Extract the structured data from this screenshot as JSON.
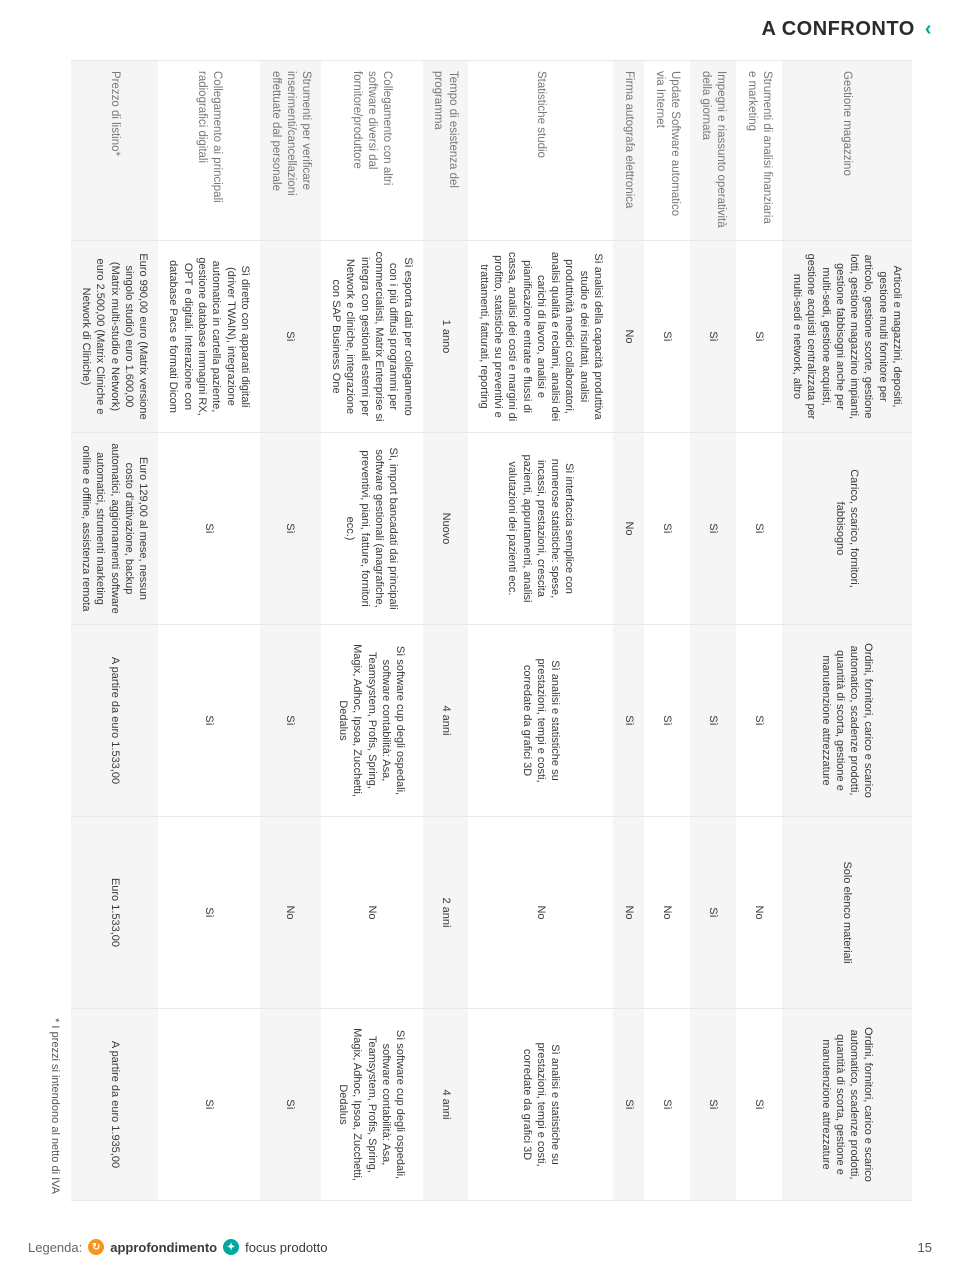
{
  "header": {
    "title": "A CONFRONTO",
    "chevron": "‹"
  },
  "legend": {
    "label": "Legenda:",
    "approfondimento": "approfondimento",
    "focus_prodotto": "focus prodotto",
    "appr_icon_color": "#f7941d",
    "focus_icon_color": "#00a99d"
  },
  "page_number": "15",
  "footnote": "* I prezzi si intendono al netto di IVA",
  "table": {
    "row_band_a_bg": "#f5f5f5",
    "row_band_b_bg": "#ffffff",
    "border_color": "#e8e8e8",
    "rowhead_color": "#777777",
    "rows": [
      {
        "label": "Gestione magazzino",
        "band": "a",
        "cells": [
          "Articoli e magazzini, depositi, gestione multi fornitore per articolo, gestione scorte, gestione lotti, gestione magazzino impianti, gestione fabbisogni anche per multi-sedi, gestione acquisti, gestione acquisti centralizzata per multi-sedi e network, altro",
          "Carico, scarico, fornitori, fabbisogno",
          "Ordini, fornitori, carico e scarico automatico, scadenze prodotti, quantità di scorta, gestione e manutenzione attrezzature",
          "Solo elenco materiali",
          "Ordini, fornitori, carico e scarico automatico, scadenze prodotti, quantità di scorta, gestione e manutenzione attrezzature"
        ]
      },
      {
        "label": "Strumenti di analisi finanziaria e marketing",
        "band": "b",
        "cells": [
          "Sì",
          "Sì",
          "Sì",
          "No",
          "Sì"
        ]
      },
      {
        "label": "Impegni e riassunto operatività della giornata",
        "band": "a",
        "cells": [
          "Sì",
          "Sì",
          "Sì",
          "Sì",
          "Sì"
        ]
      },
      {
        "label": "Update Software automatico via Internet",
        "band": "b",
        "cells": [
          "Sì",
          "Sì",
          "Sì",
          "No",
          "Sì"
        ]
      },
      {
        "label": "Firma autografa elettronica",
        "band": "a",
        "cells": [
          "No",
          "No",
          "Sì",
          "No",
          "Sì"
        ]
      },
      {
        "label": "Statistiche studio",
        "band": "b",
        "cells": [
          "Sì analisi della capacità produttiva studio e dei risultati, analisi produttività medici collaboratori, analisi qualità e reclami, analisi dei carichi di lavoro, analisi e pianificazione entrate e flussi di cassa, analisi dei costi e margini di profitto, statistiche su preventivi e trattamenti, fatturati, reporting",
          "Sì interfaccia semplice con numerose statistiche: spese, incassi, prestazioni, crescita pazienti, appuntamenti, analisi valutazioni dei pazienti ecc.",
          "Sì analisi e statistiche su prestazioni, tempi e costi, corredate da grafici 3D",
          "No",
          "Sì analisi e statistiche su prestazioni, tempi e costi, corredate da grafici 3D"
        ]
      },
      {
        "label": "Tempo di esistenza del programma",
        "band": "a",
        "cells": [
          "1 anno",
          "Nuovo",
          "4 anni",
          "2 anni",
          "4 anni"
        ]
      },
      {
        "label": "Collegamento con altri software diversi dal fornitore/produttore",
        "band": "b",
        "cells": [
          "Sì esporta dati per collegamento con i più diffusi programmi per commercialisti, Matrix Enterprise si integra con gestionali esterni per Network e cliniche, integrazione con SAP Business One",
          "Sì, import bancadati dai principali software gestionali (anagrafiche, preventivi, piani, fatture, fornitori ecc.)",
          "Sì software cup degli ospedali, software contabilità: Asa, Teamsystem, Profis, Spring, Magix, Adhoc, Ipsoa, Zucchetti, Dedalus",
          "No",
          "Sì software cup degli ospedali, software contabilità: Asa, Teamsystem, Profis, Spring, Magix, Adhoc, Ipsoa, Zucchetti, Dedalus"
        ]
      },
      {
        "label": "Strumenti per verificare inserimenti/cancellazioni effettuate dal personale",
        "band": "a",
        "cells": [
          "Sì",
          "Sì",
          "Sì",
          "No",
          "Sì"
        ]
      },
      {
        "label": "Collegamento ai principali radiografici digitali",
        "band": "b",
        "cells": [
          "Sì diretto con apparati digitali (driver TWAIN), integrazione automatica in cartella paziente, gestione database immagini RX, OPT e digitali. Interazione con database Pacs e formati Dicom",
          "Sì",
          "Sì",
          "Sì",
          "Sì"
        ]
      },
      {
        "label": "Prezzo di listino*",
        "band": "a",
        "cells": [
          "Euro 990,00 euro (Matrix versione singolo studio) euro 1.600,00 (Matrix multi-studio e Network) euro 2.500,00 (Matrix Cliniche e Network di Cliniche)",
          "Euro 129,00 al mese, nessun costo d'attivazione, backup automatici, aggiornamenti software automatici, strumenti marketing online e offline, assistenza remota",
          "A partire da euro 1.533,00",
          "Euro 1.533,00",
          "A partire da euro 1.935,00"
        ]
      }
    ]
  }
}
